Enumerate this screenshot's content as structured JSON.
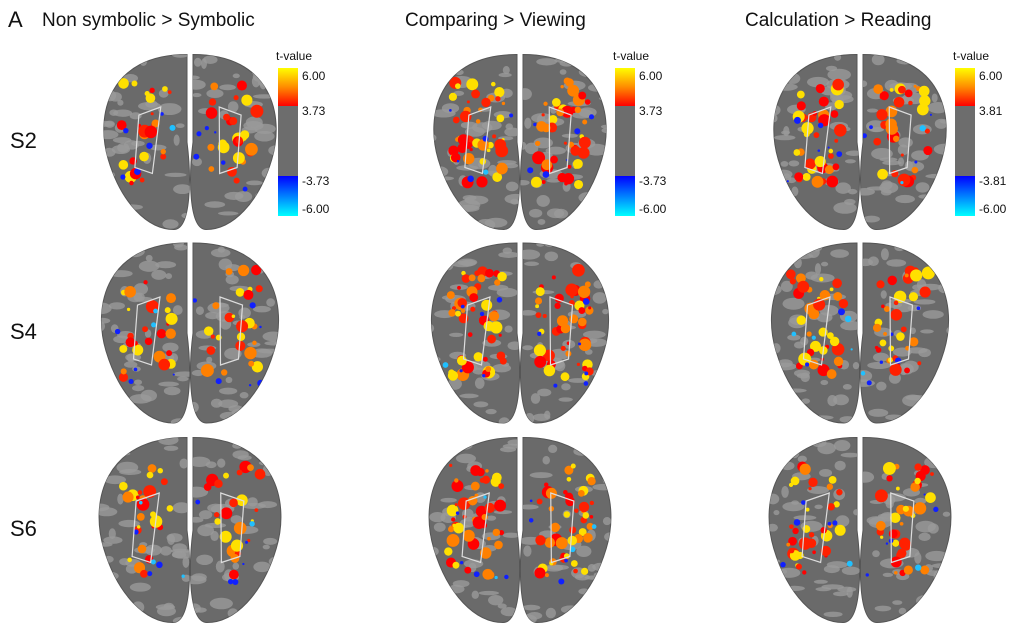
{
  "panel_label": "A",
  "columns": [
    {
      "title": "Non symbolic > Symbolic",
      "colorbar": {
        "label": "t-value",
        "ticks": [
          "6.00",
          "3.73",
          "-3.73",
          "-6.00"
        ]
      }
    },
    {
      "title": "Comparing > Viewing",
      "colorbar": {
        "label": "t-value",
        "ticks": [
          "6.00",
          "3.73",
          "-3.73",
          "-6.00"
        ]
      }
    },
    {
      "title": "Calculation > Reading",
      "colorbar": {
        "label": "t-value",
        "ticks": [
          "6.00",
          "3.81",
          "-3.81",
          "-6.00"
        ]
      }
    }
  ],
  "rows": [
    "S2",
    "S4",
    "S6"
  ]
}
